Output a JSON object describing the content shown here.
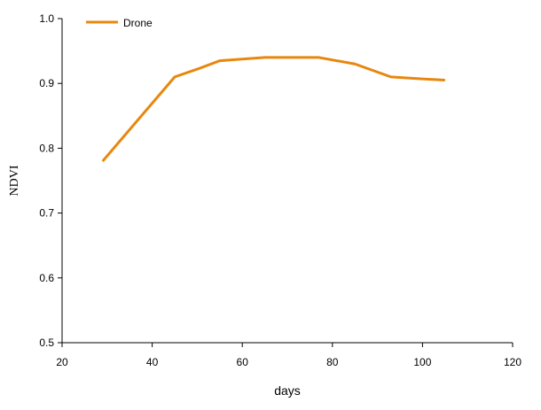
{
  "chart_data": {
    "type": "line",
    "title": "",
    "xlabel": "days",
    "ylabel": "NDVI",
    "xlim": [
      20,
      120
    ],
    "ylim": [
      0.5,
      1.0
    ],
    "x_ticks": [
      20,
      40,
      60,
      80,
      100,
      120
    ],
    "y_ticks": [
      0.5,
      0.6,
      0.7,
      0.8,
      0.9,
      1.0
    ],
    "y_tick_labels": [
      "0.5",
      "0.6",
      "0.7",
      "0.8",
      "0.9",
      "1.0"
    ],
    "grid": false,
    "legend_position": "top-left",
    "series": [
      {
        "name": "Drone",
        "color": "#E8870E",
        "x": [
          29,
          45,
          50,
          55,
          65,
          77,
          85,
          93,
          100,
          105
        ],
        "y": [
          0.78,
          0.91,
          0.922,
          0.935,
          0.94,
          0.94,
          0.93,
          0.91,
          0.907,
          0.905
        ]
      }
    ]
  }
}
